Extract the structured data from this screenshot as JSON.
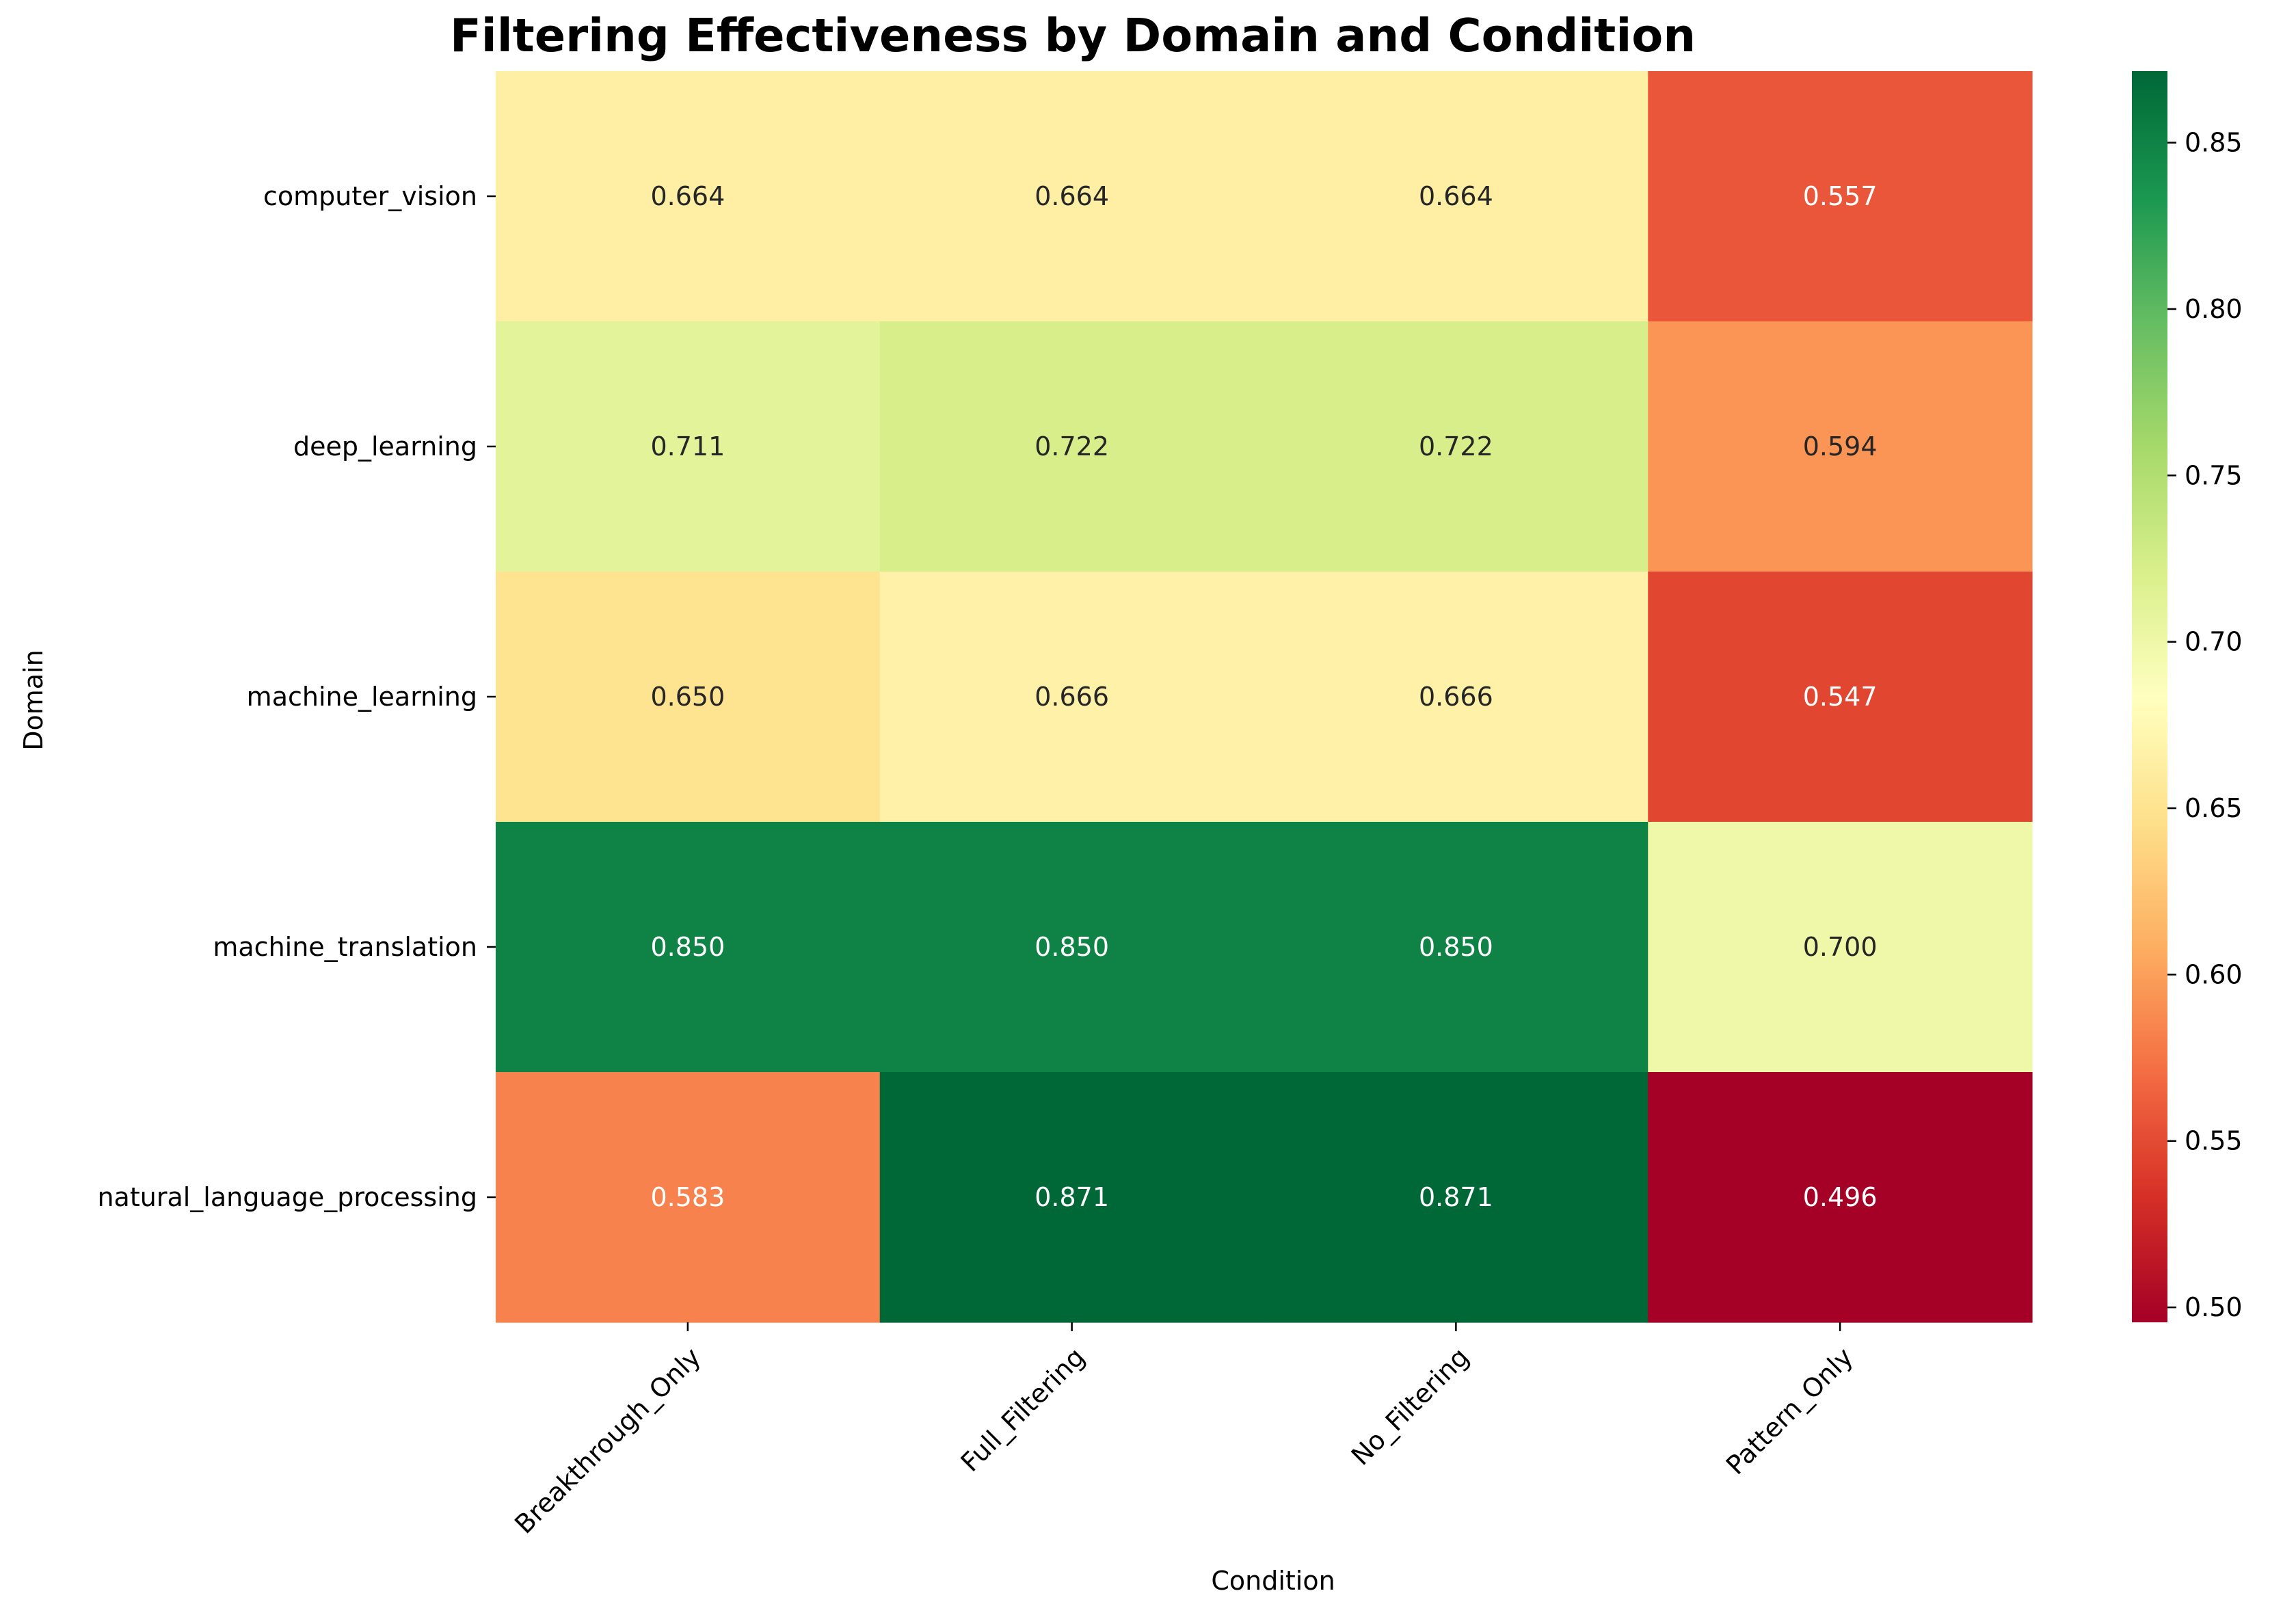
{
  "chart_data": {
    "type": "heatmap",
    "title": "Filtering Effectiveness by Domain and Condition",
    "xlabel": "Condition",
    "ylabel": "Domain",
    "x_categories": [
      "Breakthrough_Only",
      "Full_Filtering",
      "No_Filtering",
      "Pattern_Only"
    ],
    "y_categories": [
      "computer_vision",
      "deep_learning",
      "machine_learning",
      "machine_translation",
      "natural_language_processing"
    ],
    "values": [
      [
        0.664,
        0.664,
        0.664,
        0.557
      ],
      [
        0.711,
        0.722,
        0.722,
        0.594
      ],
      [
        0.65,
        0.666,
        0.666,
        0.547
      ],
      [
        0.85,
        0.85,
        0.85,
        0.7
      ],
      [
        0.583,
        0.871,
        0.871,
        0.496
      ]
    ],
    "value_format": "3 decimals",
    "colormap": "RdYlGn",
    "color_range": [
      0.496,
      0.871
    ],
    "colorbar_ticks": [
      0.5,
      0.55,
      0.6,
      0.65,
      0.7,
      0.75,
      0.8,
      0.85
    ],
    "colorbar_tick_labels": [
      "0.50",
      "0.55",
      "0.60",
      "0.65",
      "0.70",
      "0.75",
      "0.80",
      "0.85"
    ],
    "colorbar_position": "right",
    "grid": false
  }
}
